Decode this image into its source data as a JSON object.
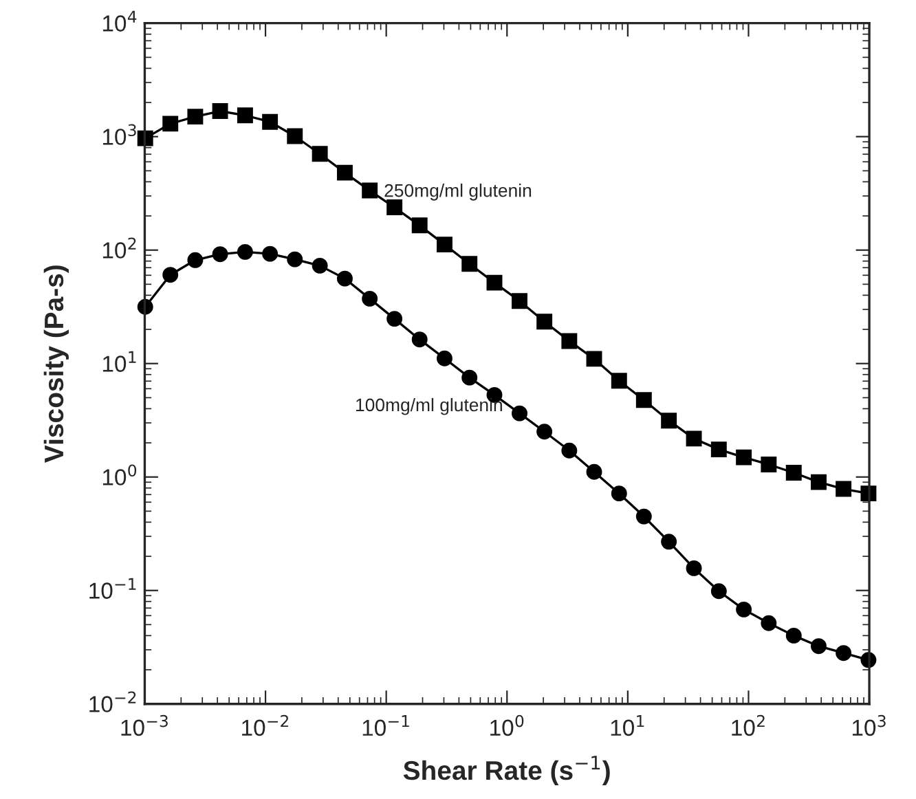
{
  "chart_data": {
    "type": "line",
    "xlabel": "Shear Rate (s$^{−1}$)",
    "ylabel": "Viscosity (Pa-s)",
    "log": "xy",
    "grid": false,
    "legend": false,
    "xlim": [
      0.001,
      1000
    ],
    "ylim": [
      0.01,
      10000
    ],
    "xticks": [
      {
        "value": 0.001,
        "label": "10$^{−3}$"
      },
      {
        "value": 0.01,
        "label": "10$^{−2}$"
      },
      {
        "value": 0.1,
        "label": "10$^{−1}$"
      },
      {
        "value": 1,
        "label": "10$^{0}$"
      },
      {
        "value": 10,
        "label": "10$^{1}$"
      },
      {
        "value": 100,
        "label": "10$^{2}$"
      },
      {
        "value": 1000,
        "label": "10$^{3}$"
      }
    ],
    "yticks": [
      {
        "value": 0.01,
        "label": "10$^{−2}$"
      },
      {
        "value": 0.1,
        "label": "10$^{−1}$"
      },
      {
        "value": 1,
        "label": "10$^{0}$"
      },
      {
        "value": 10,
        "label": "10$^{1}$"
      },
      {
        "value": 100,
        "label": "10$^{2}$"
      },
      {
        "value": 1000,
        "label": "10$^{3}$"
      },
      {
        "value": 10000,
        "label": "10$^{4}$"
      }
    ],
    "x": [
      0.00101,
      0.00163,
      0.00262,
      0.00421,
      0.00678,
      0.0109,
      0.0175,
      0.0282,
      0.0454,
      0.073,
      0.117,
      0.189,
      0.304,
      0.489,
      0.787,
      1.27,
      2.04,
      3.28,
      5.27,
      8.48,
      13.6,
      21.9,
      35.3,
      56.8,
      91.4,
      147,
      237,
      381,
      612,
      985
    ],
    "series": [
      {
        "name": "250mg/ml glutenin",
        "color": "#000000",
        "marker": "square",
        "line_style": "solid",
        "values": [
          967,
          1300,
          1500,
          1680,
          1540,
          1350,
          1010,
          705,
          481,
          335,
          238,
          165,
          112,
          75.6,
          51.6,
          35.6,
          23.4,
          15.8,
          11.0,
          7.05,
          4.77,
          3.14,
          2.18,
          1.75,
          1.49,
          1.29,
          1.09,
          0.902,
          0.785,
          0.716
        ]
      },
      {
        "name": "100mg/ml glutenin",
        "color": "#000000",
        "marker": "circle",
        "line_style": "solid",
        "values": [
          31.6,
          60.5,
          81.6,
          92.0,
          96.4,
          92.7,
          82.9,
          72.9,
          56.1,
          37.3,
          24.8,
          16.3,
          11.1,
          7.52,
          5.29,
          3.64,
          2.51,
          1.71,
          1.11,
          0.716,
          0.449,
          0.269,
          0.157,
          0.0986,
          0.068,
          0.0515,
          0.04,
          0.0323,
          0.0281,
          0.0244
        ]
      }
    ]
  }
}
